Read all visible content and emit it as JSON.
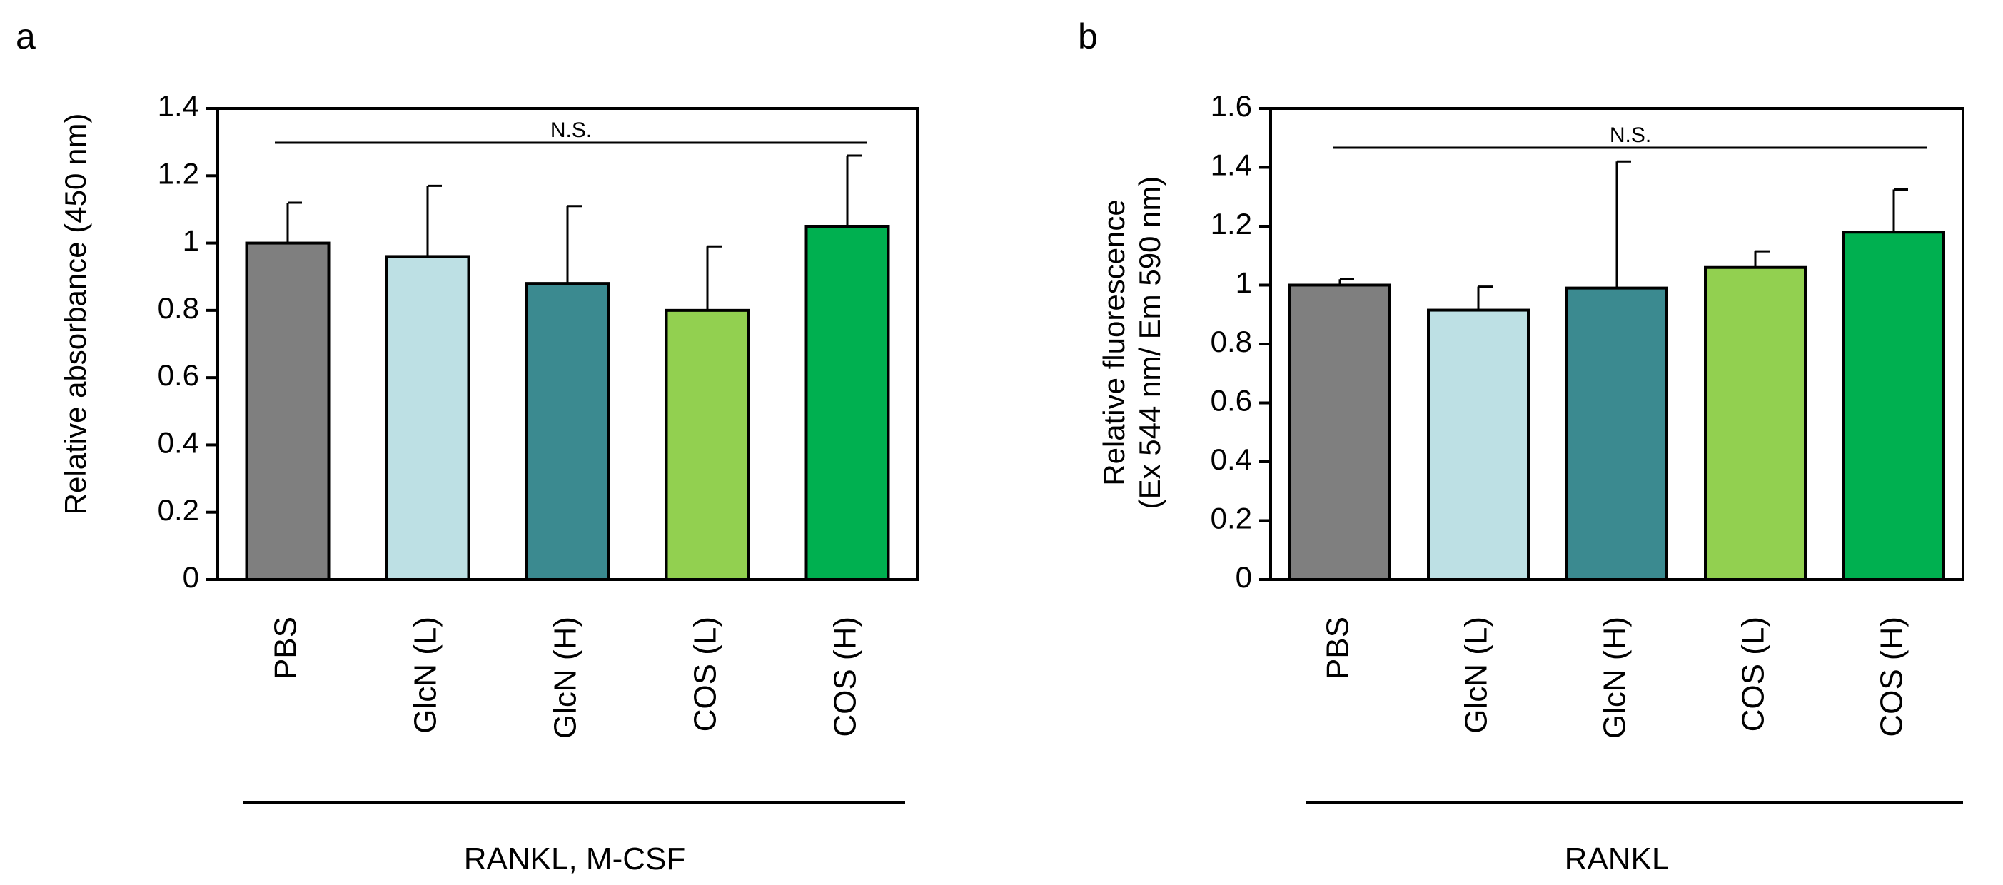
{
  "figure": {
    "panels": [
      {
        "letter": "a",
        "group_label": "RANKL, M-CSF",
        "significance": "N.S.",
        "y_tick_labels": [
          "0",
          "0.2",
          "0.4",
          "0.6",
          "0.8",
          "1",
          "1.2",
          "1.4"
        ],
        "ylabel_lines": [
          "Relative absorbance (450 nm)"
        ]
      },
      {
        "letter": "b",
        "group_label": "RANKL",
        "significance": "N.S.",
        "y_tick_labels": [
          "0",
          "0.2",
          "0.4",
          "0.6",
          "0.8",
          "1",
          "1.2",
          "1.4",
          "1.6"
        ],
        "ylabel_lines": [
          "Relative fluorescence",
          "(Ex 544 nm/ Em 590 nm)"
        ]
      }
    ]
  },
  "chart_data": [
    {
      "type": "bar",
      "categories": [
        "PBS",
        "GlcN (L)",
        "GlcN (H)",
        "COS (L)",
        "COS (H)"
      ],
      "series": [
        {
          "values": [
            1.0,
            0.96,
            0.88,
            0.8,
            1.05
          ],
          "error": [
            0.12,
            0.21,
            0.23,
            0.19,
            0.21
          ],
          "colors": [
            "#7f7f7f",
            "#bde0e4",
            "#3b8a90",
            "#92d050",
            "#00b050"
          ]
        }
      ],
      "title": "",
      "xlabel": "RANKL, M-CSF",
      "ylabel": "Relative absorbance (450 nm)",
      "ylim": [
        0,
        1.4
      ],
      "yticks": [
        0,
        0.2,
        0.4,
        0.6,
        0.8,
        1,
        1.2,
        1.4
      ],
      "annotations": [
        "N.S."
      ],
      "grid": false,
      "legend": "none"
    },
    {
      "type": "bar",
      "categories": [
        "PBS",
        "GlcN (L)",
        "GlcN (H)",
        "COS (L)",
        "COS (H)"
      ],
      "series": [
        {
          "values": [
            1.0,
            0.915,
            0.99,
            1.06,
            1.18
          ],
          "error": [
            0.02,
            0.08,
            0.43,
            0.055,
            0.145
          ],
          "colors": [
            "#7f7f7f",
            "#bde0e4",
            "#3b8a90",
            "#92d050",
            "#00b050"
          ]
        }
      ],
      "title": "",
      "xlabel": "RANKL",
      "ylabel": "Relative fluorescence (Ex 544 nm/ Em 590 nm)",
      "ylim": [
        0,
        1.6
      ],
      "yticks": [
        0,
        0.2,
        0.4,
        0.6,
        0.8,
        1,
        1.2,
        1.4,
        1.6
      ],
      "annotations": [
        "N.S."
      ],
      "grid": false,
      "legend": "none"
    }
  ]
}
